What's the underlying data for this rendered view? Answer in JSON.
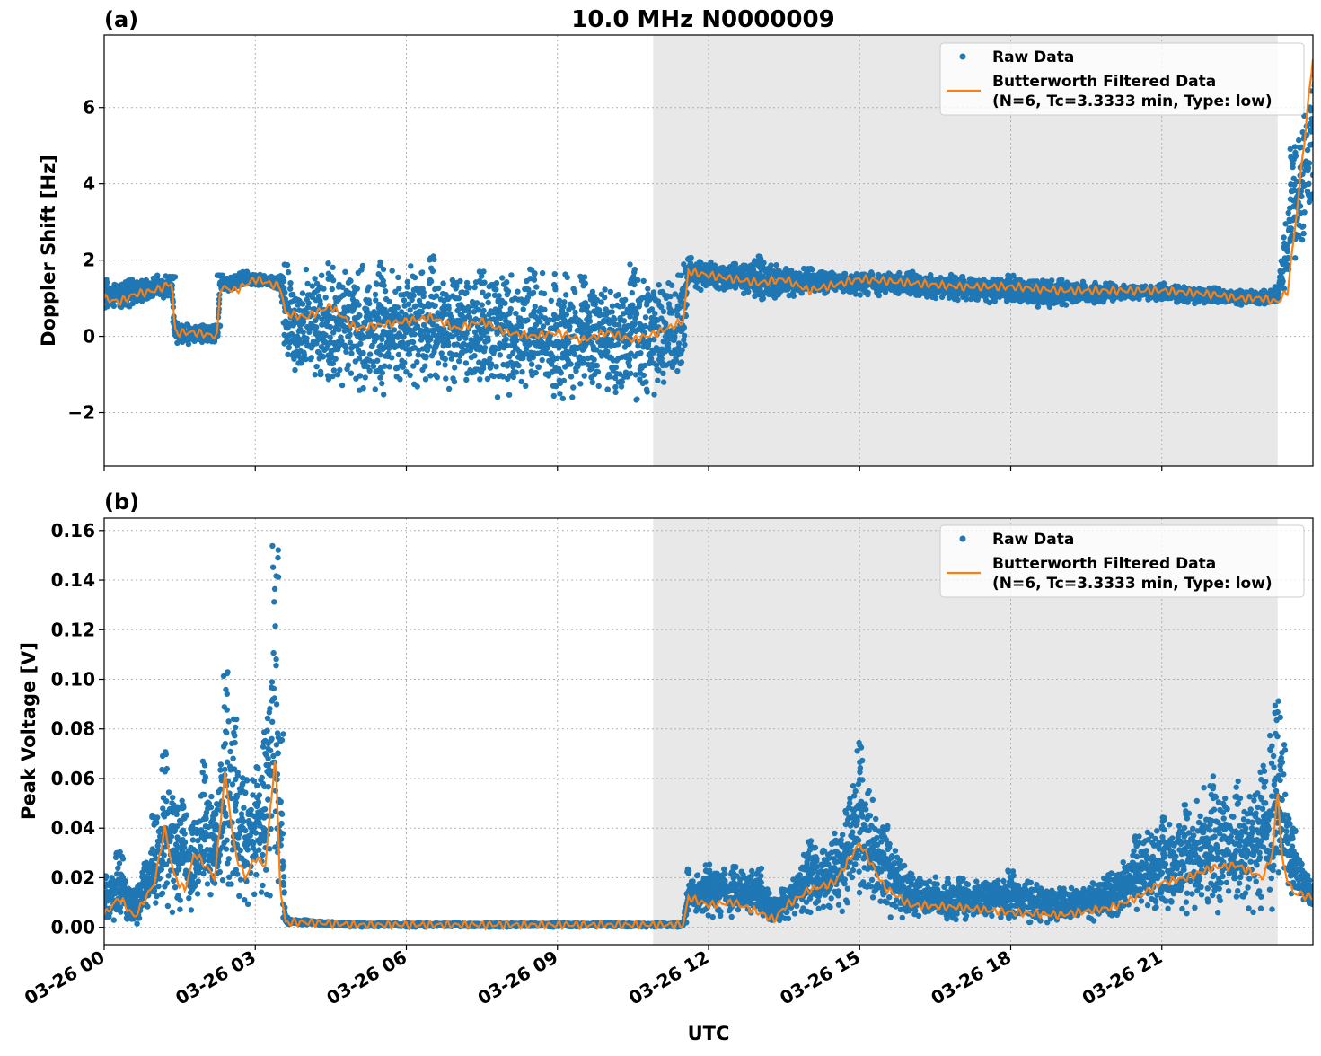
{
  "title": "10.0 MHz N0000009",
  "xlabel": "UTC",
  "x_tick_labels": [
    "03-26 00",
    "03-26 03",
    "03-26 06",
    "03-26 09",
    "03-26 12",
    "03-26 15",
    "03-26 18",
    "03-26 21"
  ],
  "legend": {
    "raw": "Raw Data",
    "filtered_line1": "Butterworth Filtered Data",
    "filtered_line2": "(N=6, Tc=3.3333 min, Type: low)"
  },
  "colors": {
    "raw": "#1f77b4",
    "filtered": "#ff7f0e",
    "night_shade": "#e8e8e8"
  },
  "chart_data": [
    {
      "panel": "(a)",
      "type": "scatter",
      "ylabel": "Doppler Shift [Hz]",
      "xlim_hours": [
        0,
        24
      ],
      "ylim": [
        -3.4,
        7.9
      ],
      "yticks": [
        -2,
        0,
        2,
        4,
        6
      ],
      "ytick_labels": [
        "−2",
        "0",
        "2",
        "4",
        "6"
      ],
      "grid": true,
      "legend_position": "top-right",
      "shaded_interval_hours": [
        10.9,
        23.3
      ],
      "series": [
        {
          "name": "Raw Data",
          "kind": "scatter-band",
          "x_hours": [
            0,
            0.5,
            1.0,
            1.35,
            1.4,
            2.25,
            2.3,
            2.8,
            3.5,
            3.6,
            4.5,
            5.5,
            6.5,
            7.5,
            8.5,
            9.5,
            10.5,
            11.5,
            11.6,
            12.5,
            13.0,
            14.0,
            16.0,
            18.0,
            19.0,
            20.0,
            21.0,
            22.0,
            23.0,
            23.3,
            23.6,
            24.0
          ],
          "y_low": [
            0.6,
            0.7,
            0.9,
            1.0,
            -0.3,
            -0.2,
            1.1,
            1.3,
            1.2,
            -1.2,
            -1.6,
            -1.7,
            -1.5,
            -1.7,
            -1.8,
            -1.9,
            -1.9,
            -1.5,
            1.2,
            1.1,
            0.8,
            1.1,
            1.0,
            0.8,
            0.7,
            0.9,
            0.9,
            0.8,
            0.8,
            0.8,
            1.2,
            3.0
          ],
          "y_high": [
            1.5,
            1.5,
            1.6,
            1.6,
            0.4,
            0.3,
            1.6,
            1.7,
            1.6,
            1.9,
            2.0,
            2.0,
            2.1,
            1.9,
            1.8,
            1.8,
            1.9,
            1.9,
            2.1,
            1.9,
            2.1,
            1.8,
            1.7,
            1.6,
            1.5,
            1.4,
            1.4,
            1.3,
            1.2,
            1.3,
            5.0,
            7.2
          ]
        },
        {
          "name": "Butterworth Filtered Data",
          "kind": "line",
          "x_hours": [
            0,
            0.3,
            0.6,
            1.0,
            1.35,
            1.4,
            1.8,
            2.25,
            2.3,
            2.6,
            3.0,
            3.5,
            3.6,
            4.0,
            4.5,
            5.0,
            5.5,
            6.0,
            6.5,
            7.0,
            7.5,
            8.0,
            8.5,
            9.0,
            9.5,
            10.0,
            10.5,
            11.0,
            11.5,
            11.6,
            12.0,
            12.5,
            13.0,
            13.5,
            14.0,
            15.0,
            16.0,
            17.0,
            18.0,
            19.0,
            20.0,
            21.0,
            22.0,
            22.5,
            23.0,
            23.3,
            23.5,
            23.7,
            24.0
          ],
          "y": [
            1.0,
            0.9,
            1.1,
            1.2,
            1.4,
            0.1,
            0.1,
            0.0,
            1.3,
            1.2,
            1.5,
            1.3,
            0.6,
            0.5,
            0.8,
            0.2,
            0.3,
            0.4,
            0.5,
            0.2,
            0.4,
            0.1,
            0.0,
            0.1,
            -0.1,
            0.1,
            -0.1,
            0.1,
            0.4,
            1.7,
            1.6,
            1.5,
            1.4,
            1.5,
            1.2,
            1.5,
            1.4,
            1.3,
            1.3,
            1.2,
            1.2,
            1.2,
            1.1,
            1.0,
            1.0,
            0.9,
            1.2,
            3.5,
            7.3
          ]
        }
      ]
    },
    {
      "panel": "(b)",
      "type": "scatter",
      "ylabel": "Peak Voltage [V]",
      "xlim_hours": [
        0,
        24
      ],
      "ylim": [
        -0.007,
        0.165
      ],
      "yticks": [
        0.0,
        0.02,
        0.04,
        0.06,
        0.08,
        0.1,
        0.12,
        0.14,
        0.16
      ],
      "ytick_labels": [
        "0.00",
        "0.02",
        "0.04",
        "0.06",
        "0.08",
        "0.10",
        "0.12",
        "0.14",
        "0.16"
      ],
      "grid": true,
      "legend_position": "top-right",
      "shaded_interval_hours": [
        10.9,
        23.3
      ],
      "series": [
        {
          "name": "Raw Data",
          "kind": "scatter-band",
          "x_hours": [
            0,
            0.3,
            0.6,
            1.0,
            1.2,
            1.4,
            1.6,
            1.8,
            2.0,
            2.2,
            2.4,
            2.6,
            2.8,
            3.0,
            3.2,
            3.4,
            3.5,
            3.6,
            4.0,
            5.0,
            7.0,
            9.0,
            10.0,
            11.0,
            11.5,
            11.6,
            12.0,
            12.5,
            13.0,
            13.3,
            13.5,
            14.0,
            14.5,
            15.0,
            15.5,
            16.0,
            17.0,
            18.0,
            19.0,
            20.0,
            20.5,
            21.0,
            21.5,
            22.0,
            22.5,
            23.0,
            23.2,
            23.3,
            23.4,
            23.6,
            24.0
          ],
          "y_low": [
            0.0,
            0.0,
            0.0,
            0.002,
            0.004,
            0.003,
            0.004,
            0.005,
            0.004,
            0.005,
            0.005,
            0.006,
            0.005,
            0.006,
            0.006,
            0.005,
            0.008,
            0.001,
            0.001,
            0.0,
            0.0,
            0.0,
            0.0,
            0.0,
            0.0,
            0.003,
            0.003,
            0.003,
            0.002,
            0.001,
            0.002,
            0.004,
            0.004,
            0.004,
            0.003,
            0.002,
            0.002,
            0.001,
            0.001,
            0.002,
            0.002,
            0.003,
            0.003,
            0.002,
            0.003,
            0.003,
            0.003,
            0.006,
            0.005,
            0.008,
            0.008
          ],
          "y_high": [
            0.021,
            0.033,
            0.015,
            0.046,
            0.072,
            0.055,
            0.052,
            0.043,
            0.068,
            0.05,
            0.103,
            0.085,
            0.06,
            0.065,
            0.08,
            0.157,
            0.08,
            0.004,
            0.003,
            0.002,
            0.002,
            0.002,
            0.002,
            0.002,
            0.002,
            0.024,
            0.026,
            0.025,
            0.024,
            0.012,
            0.016,
            0.035,
            0.038,
            0.076,
            0.042,
            0.022,
            0.02,
            0.023,
            0.016,
            0.022,
            0.038,
            0.045,
            0.05,
            0.062,
            0.06,
            0.066,
            0.08,
            0.094,
            0.075,
            0.04,
            0.017
          ]
        },
        {
          "name": "Butterworth Filtered Data",
          "kind": "line",
          "x_hours": [
            0,
            0.3,
            0.6,
            1.0,
            1.2,
            1.4,
            1.6,
            1.8,
            2.0,
            2.2,
            2.4,
            2.6,
            2.8,
            3.0,
            3.2,
            3.4,
            3.5,
            3.6,
            4.0,
            5.0,
            7.0,
            9.0,
            10.0,
            11.0,
            11.5,
            11.6,
            12.0,
            12.5,
            13.0,
            13.3,
            13.5,
            14.0,
            14.5,
            15.0,
            15.5,
            16.0,
            17.0,
            18.0,
            19.0,
            20.0,
            20.5,
            21.0,
            21.5,
            22.0,
            22.5,
            23.0,
            23.2,
            23.3,
            23.4,
            23.6,
            24.0
          ],
          "y": [
            0.005,
            0.012,
            0.004,
            0.018,
            0.04,
            0.02,
            0.015,
            0.03,
            0.025,
            0.02,
            0.062,
            0.03,
            0.02,
            0.028,
            0.025,
            0.07,
            0.015,
            0.002,
            0.002,
            0.001,
            0.001,
            0.001,
            0.001,
            0.001,
            0.001,
            0.012,
            0.009,
            0.01,
            0.006,
            0.003,
            0.008,
            0.015,
            0.018,
            0.034,
            0.016,
            0.009,
            0.008,
            0.006,
            0.005,
            0.008,
            0.012,
            0.018,
            0.02,
            0.024,
            0.025,
            0.02,
            0.03,
            0.056,
            0.025,
            0.014,
            0.012
          ]
        }
      ]
    }
  ]
}
